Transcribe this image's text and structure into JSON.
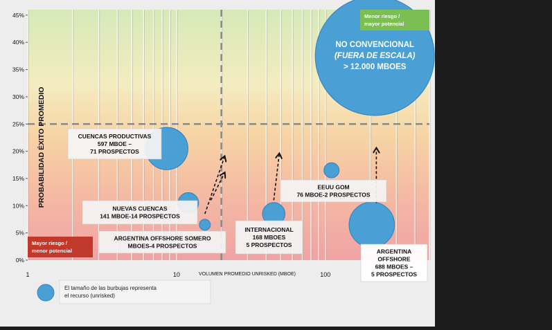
{
  "chart_data": {
    "type": "scatter",
    "subtype": "bubble",
    "title": "",
    "xlabel": "VOLUMEN PROMEDIO UNRISKED (MBOE)",
    "ylabel": "PROBABILIDAD ÉXITO PROMEDIO",
    "xscale": "log",
    "xlim": [
      1,
      500
    ],
    "ylim": [
      0,
      46
    ],
    "x_ticks": [
      {
        "value": 1,
        "label": "1"
      },
      {
        "value": 10,
        "label": "10"
      },
      {
        "value": 100,
        "label": "100"
      }
    ],
    "y_ticks": [
      {
        "value": 0,
        "label": "0%"
      },
      {
        "value": 5,
        "label": "5%"
      },
      {
        "value": 10,
        "label": "10%"
      },
      {
        "value": 15,
        "label": "15%"
      },
      {
        "value": 20,
        "label": "20%"
      },
      {
        "value": 25,
        "label": "25%"
      },
      {
        "value": 30,
        "label": "30%"
      },
      {
        "value": 35,
        "label": "35%"
      },
      {
        "value": 40,
        "label": "40%"
      },
      {
        "value": 45,
        "label": "45%"
      }
    ],
    "vertical_grid": true,
    "threshold_x": 20,
    "threshold_y": 25,
    "bubble_color": "#4a9fd5",
    "points": [
      {
        "x": 8.6,
        "y": 20.5,
        "size": 597,
        "label": [
          "CUENCAS PRODUCTIVAS",
          "597 MBOE –",
          "71 PROSPECTOS"
        ]
      },
      {
        "x": 12,
        "y": 10.5,
        "size": 141,
        "label": [
          "NUEVAS CUENCAS",
          "141 MBOE-14 PROSPECTOS"
        ]
      },
      {
        "x": 15.5,
        "y": 6.5,
        "size": 40,
        "label": [
          "ARGENTINA OFFSHORE SOMERO",
          "MBOES-4 PROSPECTOS"
        ]
      },
      {
        "x": 45,
        "y": 8.5,
        "size": 168,
        "label": [
          "INTERNACIONAL",
          "168 MBOES",
          "5 PROSPECTOS"
        ]
      },
      {
        "x": 110,
        "y": 16.5,
        "size": 76,
        "label": [
          "EEUU GOM",
          "76 MBOE-2 PROSPECTOS"
        ]
      },
      {
        "x": 205,
        "y": 6.5,
        "size": 688,
        "label": [
          "ARGENTINA",
          "OFFSHORE",
          "688 MBOES –",
          "5 PROSPECTOS"
        ]
      },
      {
        "x": 215,
        "y": 37.5,
        "size": 12000,
        "label": [
          "NO CONVENCIONAL",
          "(FUERA DE ESCALA)",
          "> 12.000 MBOES"
        ],
        "out_of_scale": true
      }
    ],
    "arrows": [
      {
        "from": [
          15.5,
          8.5
        ],
        "to": [
          21,
          19
        ]
      },
      {
        "from": [
          17,
          11
        ],
        "to": [
          21,
          16
        ]
      },
      {
        "from": [
          45,
          11
        ],
        "to": [
          49,
          19.5
        ]
      },
      {
        "from": [
          220,
          10.5
        ],
        "to": [
          220,
          20.5
        ]
      }
    ],
    "annotations": [
      {
        "text": [
          "Menor riesgo /",
          "mayor potencial"
        ],
        "position": "top-right",
        "color": "#7bbf52"
      },
      {
        "text": [
          "Mayor riesgo /",
          "menor potencial"
        ],
        "position": "bottom-left",
        "color": "#c0392b"
      }
    ],
    "legend": {
      "text": [
        "El tamaño de las burbujas representa",
        "el recurso (unrisked)"
      ],
      "position": "bottom"
    }
  }
}
